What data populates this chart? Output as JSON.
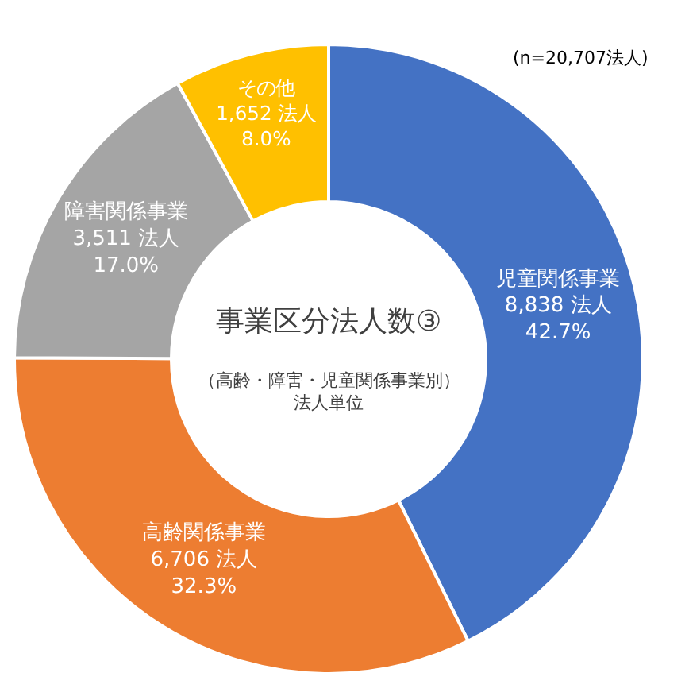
{
  "chart_data": {
    "type": "donut",
    "title": "事業区分法人数③",
    "subtitle": "（高齢・障害・児童関係事業別）",
    "categories": [
      "児童関係事業",
      "高齢関係事業",
      "障害関係事業",
      "その他"
    ],
    "values": [
      8838,
      6706,
      3511,
      1652
    ],
    "value_labels": [
      "8,838 法人\n42.7%",
      "6,706 法人\n32.3%",
      "3,511 法人\n17.0%",
      "1,652 法人\n8.0%"
    ],
    "colors": [
      "#4472c4",
      "#ed7d31",
      "#a5a5a5",
      "#ffc000"
    ],
    "annotations": [
      "法人単位",
      "(n=20,707法人)"
    ],
    "legend": false
  }
}
